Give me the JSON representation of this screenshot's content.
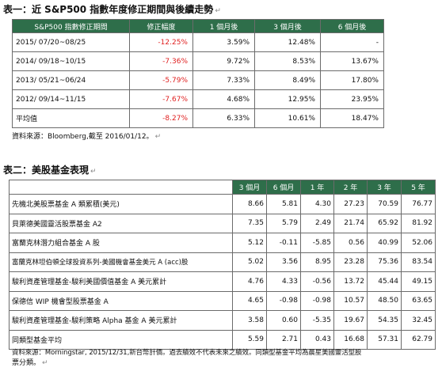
{
  "table1": {
    "caption": "表一：近 S&P500 指數年度修正期間與後續走勢",
    "headers": [
      "S&P500 指數修正期間",
      "修正幅度",
      "1 個月後",
      "3 個月後",
      "6 個月後"
    ],
    "rows": [
      {
        "period": "2015/ 07/20~08/25",
        "decline": "-12.25%",
        "m1": "3.59%",
        "m3": "12.48%",
        "m6": "-"
      },
      {
        "period": "2014/ 09/18~10/15",
        "decline": "-7.36%",
        "m1": "9.72%",
        "m3": "8.53%",
        "m6": "13.67%"
      },
      {
        "period": "2013/ 05/21~06/24",
        "decline": "-5.79%",
        "m1": "7.33%",
        "m3": "8.49%",
        "m6": "17.80%"
      },
      {
        "period": "2012/ 09/14~11/15",
        "decline": "-7.67%",
        "m1": "4.68%",
        "m3": "12.95%",
        "m6": "23.95%"
      },
      {
        "period": "平均值",
        "decline": "-8.27%",
        "m1": "6.33%",
        "m3": "10.61%",
        "m6": "18.47%"
      }
    ],
    "source": "資料來源：Bloomberg,截至 2016/01/12。"
  },
  "table2": {
    "caption": "表二：美股基金表現",
    "headers": [
      "3 個月",
      "6 個月",
      "1 年",
      "2 年",
      "3 年",
      "5 年"
    ],
    "rows": [
      {
        "name": "先機北美股票基金 A 類累積(美元)",
        "v": [
          "8.66",
          "5.81",
          "4.30",
          "27.23",
          "70.59",
          "76.77"
        ]
      },
      {
        "name": "貝萊德美國靈活股票基金 A2",
        "v": [
          "7.35",
          "5.79",
          "2.49",
          "21.74",
          "65.92",
          "81.92"
        ]
      },
      {
        "name": "富蘭克林潛力組合基金 A 股",
        "v": [
          "5.12",
          "-0.11",
          "-5.85",
          "0.56",
          "40.99",
          "52.06"
        ]
      },
      {
        "name": "富蘭克林坦伯頓全球投資系列-美國機會基金美元 A (acc)股",
        "v": [
          "5.02",
          "3.56",
          "8.95",
          "23.28",
          "75.36",
          "83.54"
        ]
      },
      {
        "name": "駿利資產管理基金-駿利美國價值基金 A 美元累計",
        "v": [
          "4.76",
          "4.33",
          "-0.56",
          "13.72",
          "45.44",
          "49.15"
        ]
      },
      {
        "name": "保德信 WIP 機會型股票基金 A",
        "v": [
          "4.65",
          "-0.98",
          "-0.98",
          "10.57",
          "48.50",
          "63.65"
        ]
      },
      {
        "name": "駿利資產管理基金-駿利策略 Alpha 基金 A 美元累計",
        "v": [
          "3.58",
          "0.60",
          "-5.35",
          "19.67",
          "54.35",
          "32.45"
        ]
      },
      {
        "name": "同類型基金平均",
        "v": [
          "5.59",
          "2.71",
          "0.43",
          "16.68",
          "57.31",
          "62.79"
        ]
      }
    ],
    "source_line1": "資料來源：Morningstar, 2015/12/31,新台幣計價。過去績效不代表未來之績效。同類型基金平均為晨星美國靈活型股",
    "source_line2": "票分類。"
  },
  "colors": {
    "header_bg": "#2e6e4a",
    "negative": "#e02020"
  }
}
